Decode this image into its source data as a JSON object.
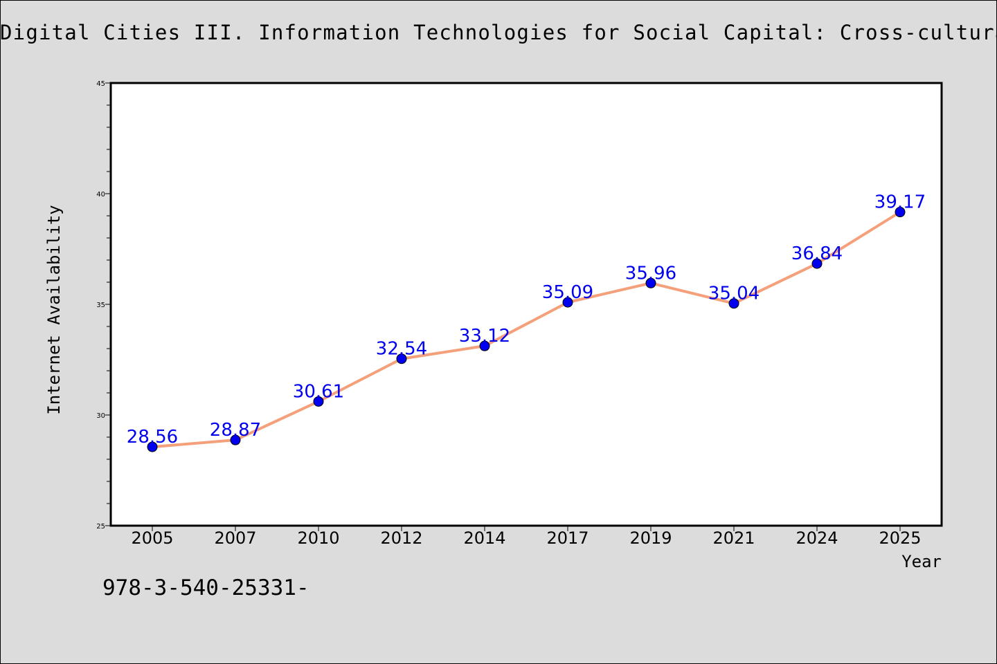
{
  "page": {
    "title": "Digital Cities III. Information Technologies for Social Capital: Cross-cultural",
    "footer_note": "978-3-540-25331-"
  },
  "colors": {
    "background": "#dcdcdc",
    "plot_background": "#ffffff",
    "line": "#f4a07a",
    "marker": "#0000ee",
    "data_label": "#0000ee"
  },
  "chart_data": {
    "type": "line",
    "title": "Digital Cities III. Information Technologies for Social Capital: Cross-cultural",
    "xlabel": "Year",
    "ylabel": "Internet Availability",
    "categories": [
      "2005",
      "2007",
      "2010",
      "2012",
      "2014",
      "2017",
      "2019",
      "2021",
      "2024",
      "2025"
    ],
    "series": [
      {
        "values": [
          28.56,
          28.87,
          30.61,
          32.54,
          33.12,
          35.09,
          35.96,
          35.04,
          36.84,
          39.17
        ]
      }
    ],
    "data_labels": [
      "28.56",
      "28.87",
      "30.61",
      "32.54",
      "33.12",
      "35.09",
      "35.96",
      "35.04",
      "36.84",
      "39.17"
    ],
    "ylim": [
      25,
      45
    ],
    "y_major_ticks": [
      25,
      30,
      35,
      40,
      45
    ],
    "y_minor_step": 1,
    "grid": false,
    "legend": "none"
  }
}
